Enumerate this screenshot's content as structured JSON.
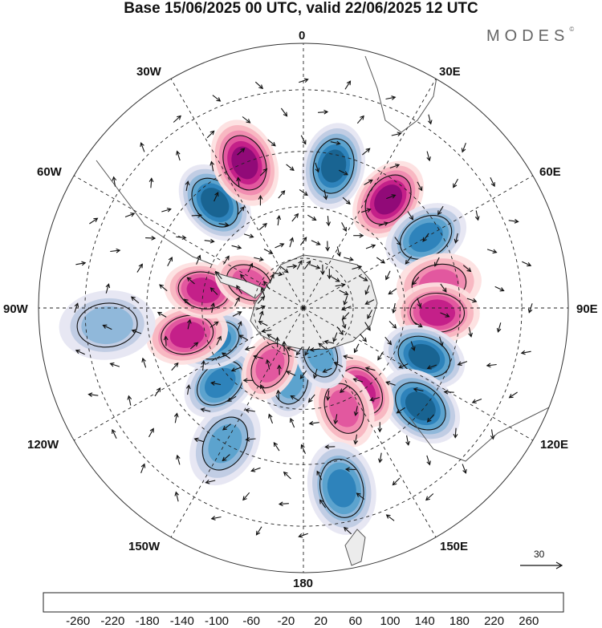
{
  "title": "Base 15/06/2025 00 UTC, valid 22/06/2025 12 UTC",
  "logo": {
    "text": "MODES",
    "mark": "©"
  },
  "longitude_labels": {
    "lon_0": "0",
    "lon_30e": "30E",
    "lon_60e": "60E",
    "lon_90e": "90E",
    "lon_120e": "120E",
    "lon_150e": "150E",
    "lon_180": "180",
    "lon_150w": "150W",
    "lon_120w": "120W",
    "lon_90w": "90W",
    "lon_60w": "60W",
    "lon_30w": "30W"
  },
  "vector_reference": {
    "label": "30"
  },
  "colorbar": {
    "ticks": [
      "-260",
      "-220",
      "-180",
      "-140",
      "-100",
      "-60",
      "-20",
      "20",
      "60",
      "100",
      "140",
      "180",
      "220",
      "260"
    ],
    "colors": [
      "#0f3a5c",
      "#18628f",
      "#2b82b9",
      "#5aa1cd",
      "#8db6d9",
      "#bfcbe3",
      "#e6e6f2",
      "#ffffff",
      "#fde0e0",
      "#f8b5c0",
      "#f08ab0",
      "#e0559e",
      "#c21e88",
      "#8e0a77",
      "#5a0a6b"
    ]
  },
  "map": {
    "projection": "south polar stereographic",
    "anomaly_centers": [
      {
        "lon": -40,
        "lat": -50,
        "value": -220
      },
      {
        "lon": -22,
        "lat": -45,
        "value": 240
      },
      {
        "lon": 12,
        "lat": -48,
        "value": -240
      },
      {
        "lon": 38,
        "lat": -50,
        "value": 220
      },
      {
        "lon": 60,
        "lat": -49,
        "value": -180
      },
      {
        "lon": 80,
        "lat": -50,
        "value": 140
      },
      {
        "lon": 92,
        "lat": -51,
        "value": 200
      },
      {
        "lon": 112,
        "lat": -52,
        "value": -230
      },
      {
        "lon": 130,
        "lat": -46,
        "value": -220
      },
      {
        "lon": 145,
        "lat": -60,
        "value": 200
      },
      {
        "lon": 158,
        "lat": -58,
        "value": 140
      },
      {
        "lon": 168,
        "lat": -38,
        "value": -180
      },
      {
        "lon": -150,
        "lat": -45,
        "value": -160
      },
      {
        "lon": -132,
        "lat": -57,
        "value": -200
      },
      {
        "lon": -170,
        "lat": -68,
        "value": -140
      },
      {
        "lon": -110,
        "lat": -62,
        "value": -200
      },
      {
        "lon": -150,
        "lat": -70,
        "value": 160
      },
      {
        "lon": -103,
        "lat": -55,
        "value": 180
      },
      {
        "lon": -95,
        "lat": -35,
        "value": -120
      },
      {
        "lon": -80,
        "lat": -60,
        "value": 180
      },
      {
        "lon": -65,
        "lat": -72,
        "value": 160
      },
      {
        "lon": 160,
        "lat": -75,
        "value": -140
      }
    ]
  }
}
